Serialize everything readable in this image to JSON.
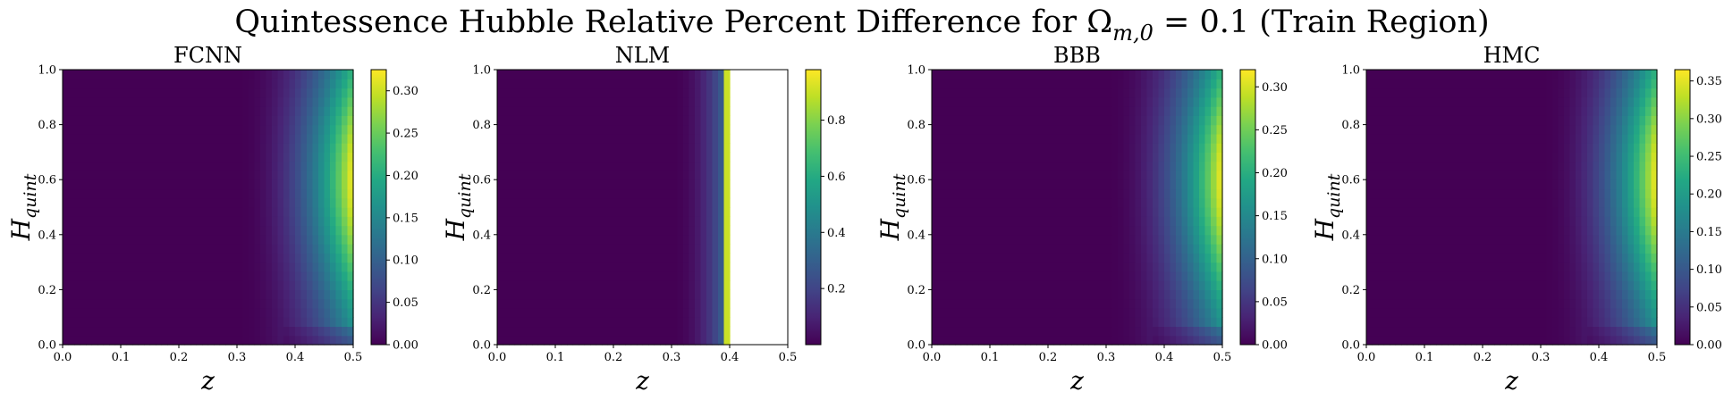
{
  "figure": {
    "title": "Quintessence Hubble Relative Percent Difference for Ωm,0 = 0.1 (Train Region)",
    "title_main": "Quintessence Hubble Relative Percent Difference for Ω",
    "title_sub": "m,0",
    "title_rest": " = 0.1 (Train Region)"
  },
  "chart_data": [
    {
      "type": "heatmap",
      "title": "FCNN",
      "xlabel": "z",
      "ylabel": "H",
      "ylabel_sub": "quint",
      "xlim": [
        0,
        0.5
      ],
      "ylim": [
        0,
        1
      ],
      "x_ticks": [
        "0.0",
        "0.1",
        "0.2",
        "0.3",
        "0.4",
        "0.5"
      ],
      "y_ticks": [
        "0.0",
        "0.2",
        "0.4",
        "0.6",
        "0.8",
        "1.0"
      ],
      "colorbar": {
        "min": 0.0,
        "max": 0.325,
        "ticks": [
          "0.00",
          "0.05",
          "0.10",
          "0.15",
          "0.20",
          "0.25",
          "0.30"
        ]
      },
      "colormap": "viridis",
      "peak_value": 0.325,
      "description": "near zero for z below 0.3, rising steeply toward z = 0.5, highest around H = 0.6"
    },
    {
      "type": "heatmap",
      "title": "NLM",
      "xlabel": "z",
      "ylabel": "H",
      "ylabel_sub": "quint",
      "xlim": [
        0,
        0.5
      ],
      "ylim": [
        0,
        1
      ],
      "x_ticks": [
        "0.0",
        "0.1",
        "0.2",
        "0.3",
        "0.4",
        "0.5"
      ],
      "y_ticks": [
        "0.0",
        "0.2",
        "0.4",
        "0.6",
        "0.8",
        "1.0"
      ],
      "colorbar": {
        "min": 0.0,
        "max": 0.98,
        "ticks": [
          "0.2",
          "0.4",
          "0.6",
          "0.8"
        ]
      },
      "colormap": "viridis",
      "nan_region_start_z": 0.395,
      "description": "values rise near z = 0.39 then blank (undefined) region up to z = 0.5"
    },
    {
      "type": "heatmap",
      "title": "BBB",
      "xlabel": "z",
      "ylabel": "H",
      "ylabel_sub": "quint",
      "xlim": [
        0,
        0.5
      ],
      "ylim": [
        0,
        1
      ],
      "x_ticks": [
        "0.0",
        "0.1",
        "0.2",
        "0.3",
        "0.4",
        "0.5"
      ],
      "y_ticks": [
        "0.0",
        "0.2",
        "0.4",
        "0.6",
        "0.8",
        "1.0"
      ],
      "colorbar": {
        "min": 0.0,
        "max": 0.32,
        "ticks": [
          "0.00",
          "0.05",
          "0.10",
          "0.15",
          "0.20",
          "0.25",
          "0.30"
        ]
      },
      "colormap": "viridis",
      "peak_value": 0.32,
      "description": "near zero for z below 0.3, rising toward z = 0.5, highest around H = 0.6"
    },
    {
      "type": "heatmap",
      "title": "HMC",
      "xlabel": "z",
      "ylabel": "H",
      "ylabel_sub": "quint",
      "xlim": [
        0,
        0.5
      ],
      "ylim": [
        0,
        1
      ],
      "x_ticks": [
        "0.0",
        "0.1",
        "0.2",
        "0.3",
        "0.4",
        "0.5"
      ],
      "y_ticks": [
        "0.0",
        "0.2",
        "0.4",
        "0.6",
        "0.8",
        "1.0"
      ],
      "colorbar": {
        "min": 0.0,
        "max": 0.365,
        "ticks": [
          "0.00",
          "0.05",
          "0.10",
          "0.15",
          "0.20",
          "0.25",
          "0.30",
          "0.35"
        ]
      },
      "colormap": "viridis",
      "peak_value": 0.365,
      "description": "near zero for z below 0.3, rising toward z = 0.5, highest around H = 0.6"
    }
  ]
}
